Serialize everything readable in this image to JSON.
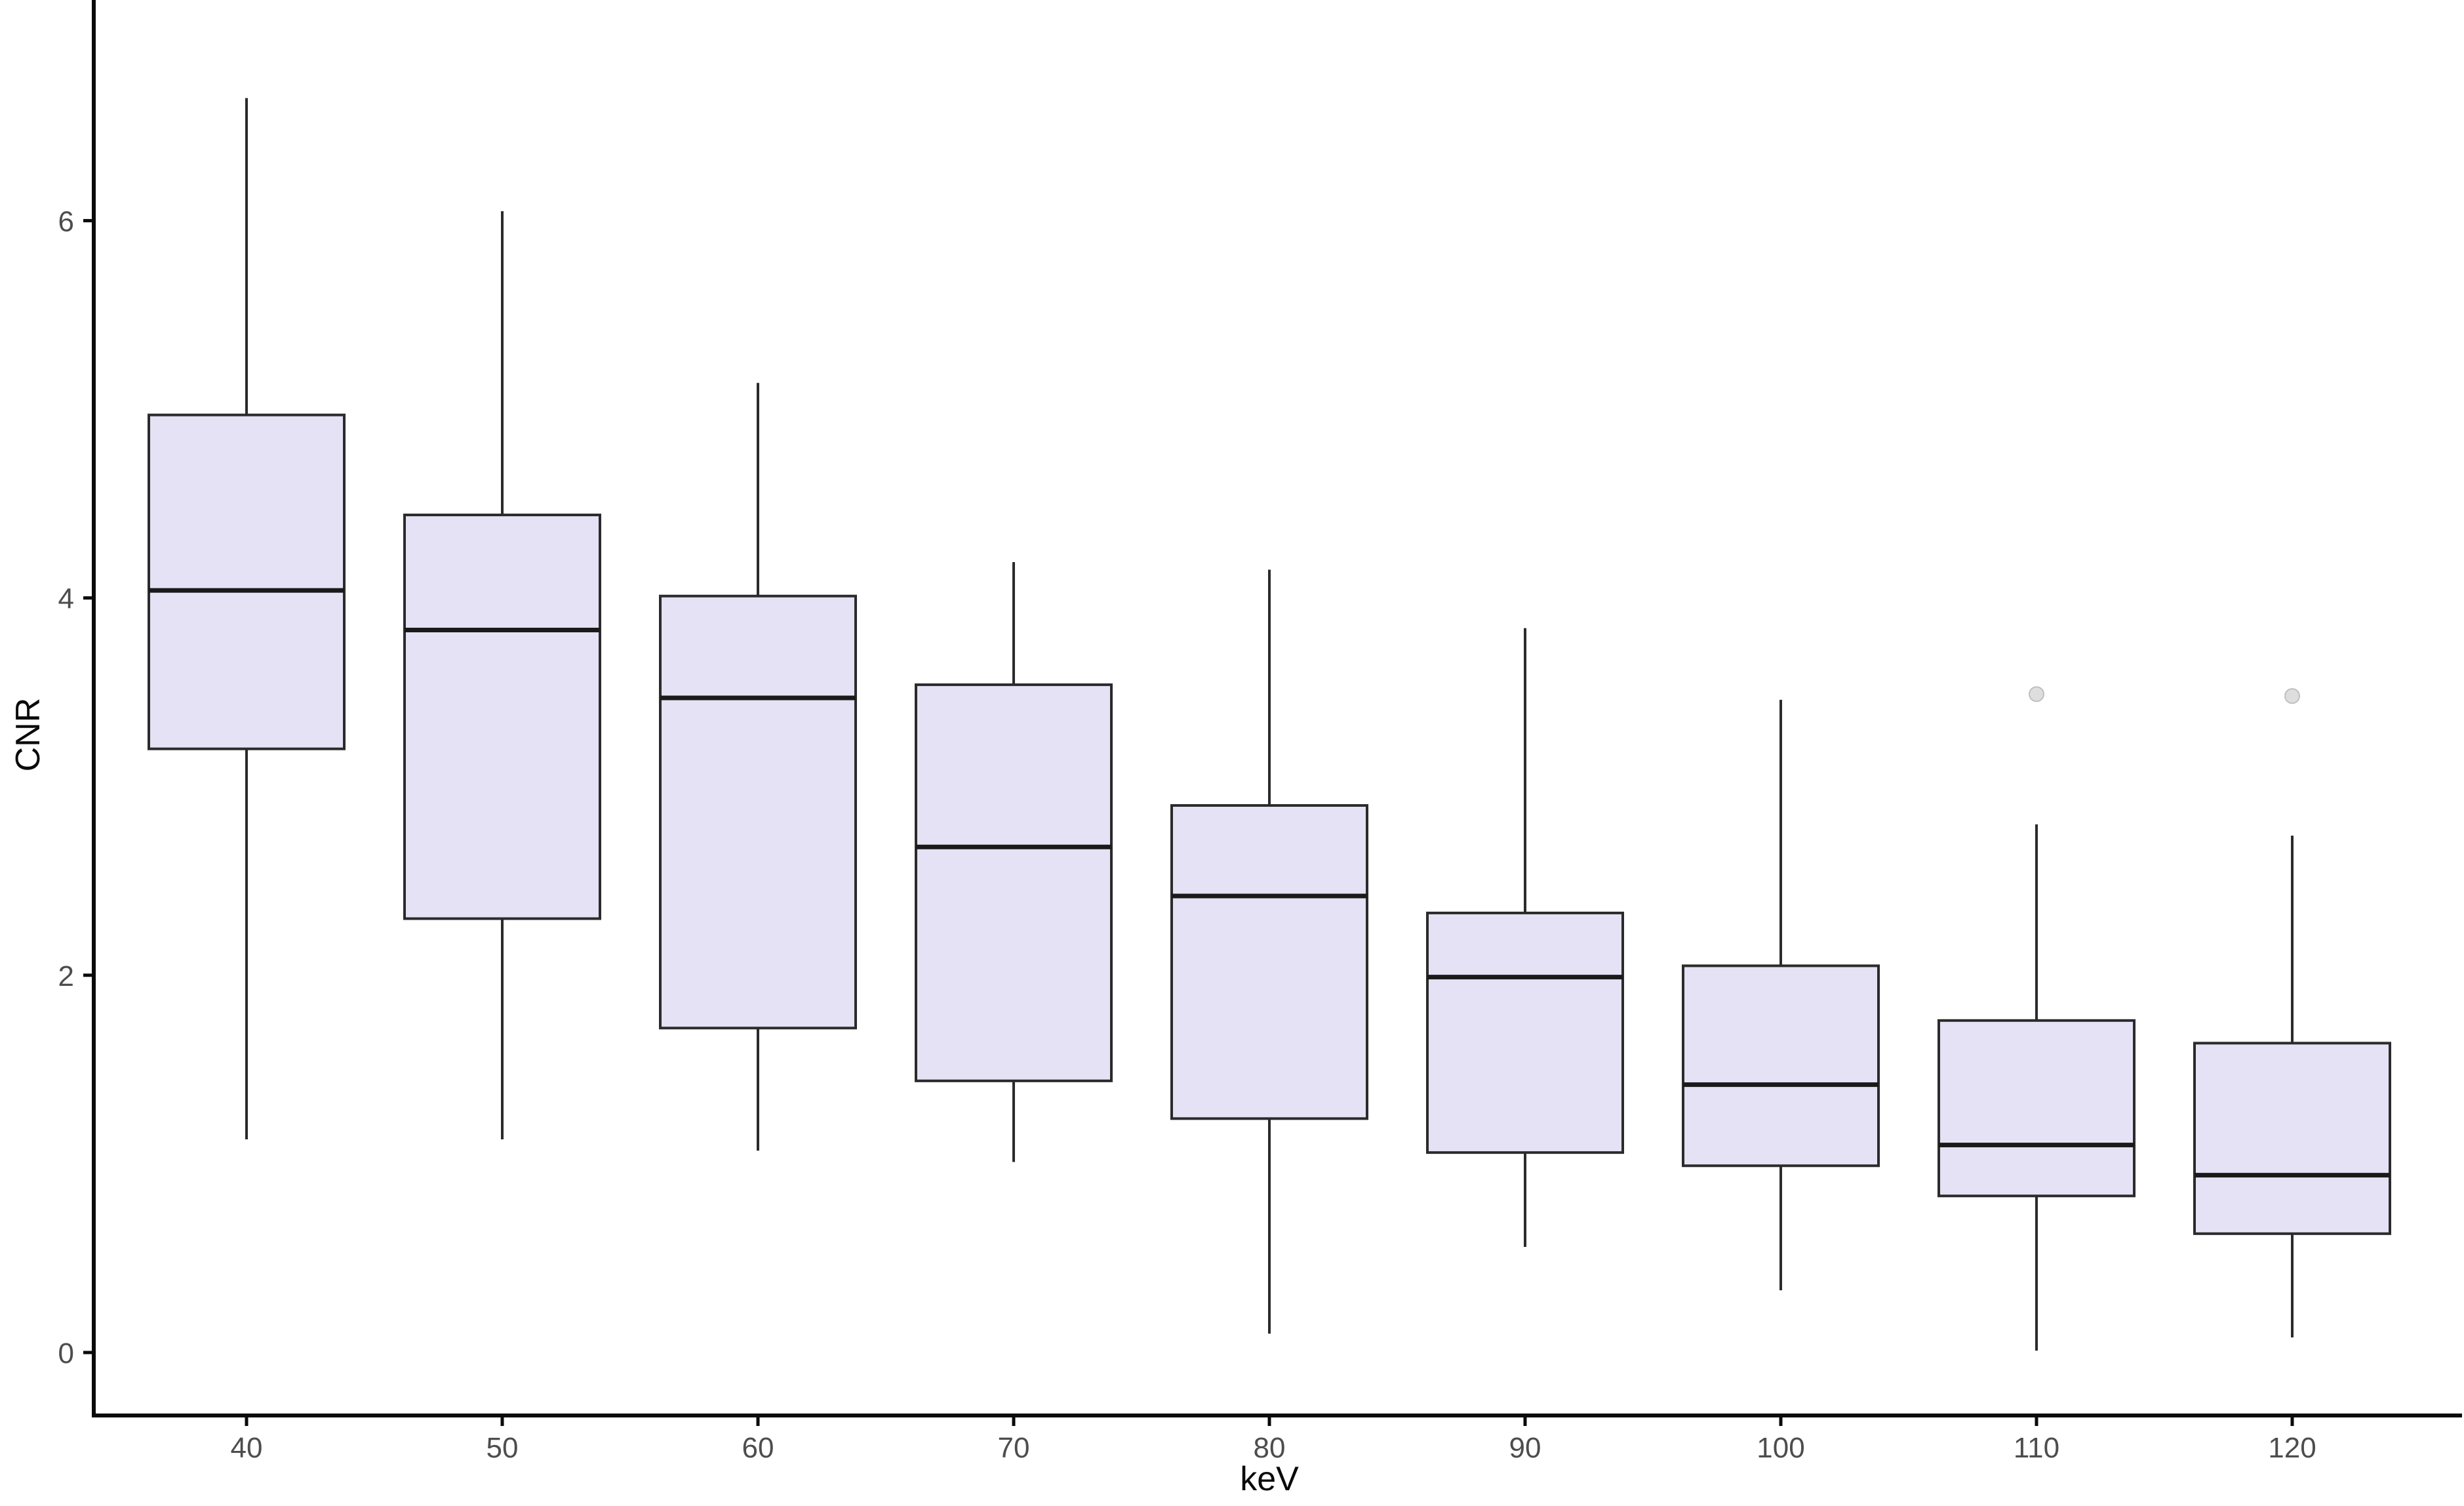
{
  "figure": {
    "background": "#ffffff",
    "box_fill": "#e4e2f4",
    "box_border": "#2b2b2b",
    "median_color": "#1a1a1a",
    "whisker_color": "#2b2b2b",
    "axis_line_color": "#0a0a0a",
    "tick_label_color": "#4d4d4d",
    "axis_title_color": "#0a0a0a",
    "outlier_fill": "#d3d3d3",
    "outlier_stroke": "#bfbfbf"
  },
  "chart_data": {
    "type": "boxplot",
    "title": "",
    "xlabel": "keV",
    "ylabel": "CNR",
    "categories": [
      "40",
      "50",
      "60",
      "70",
      "80",
      "90",
      "100",
      "110",
      "120"
    ],
    "y_ticks": [
      0,
      2,
      4,
      6
    ],
    "ylim": [
      -0.35,
      7.15
    ],
    "grid": false,
    "legend": "none",
    "boxes": [
      {
        "category": "40",
        "whisker_low": 1.13,
        "q1": 3.2,
        "median": 4.04,
        "q3": 4.97,
        "whisker_high": 6.65,
        "outliers": []
      },
      {
        "category": "50",
        "whisker_low": 1.13,
        "q1": 2.3,
        "median": 3.83,
        "q3": 4.44,
        "whisker_high": 6.05,
        "outliers": []
      },
      {
        "category": "60",
        "whisker_low": 1.07,
        "q1": 1.72,
        "median": 3.47,
        "q3": 4.01,
        "whisker_high": 5.14,
        "outliers": []
      },
      {
        "category": "70",
        "whisker_low": 1.01,
        "q1": 1.44,
        "median": 2.68,
        "q3": 3.54,
        "whisker_high": 4.19,
        "outliers": []
      },
      {
        "category": "80",
        "whisker_low": 0.1,
        "q1": 1.24,
        "median": 2.42,
        "q3": 2.9,
        "whisker_high": 4.15,
        "outliers": []
      },
      {
        "category": "90",
        "whisker_low": 0.56,
        "q1": 1.06,
        "median": 1.99,
        "q3": 2.33,
        "whisker_high": 3.84,
        "outliers": []
      },
      {
        "category": "100",
        "whisker_low": 0.33,
        "q1": 0.99,
        "median": 1.42,
        "q3": 2.05,
        "whisker_high": 3.46,
        "outliers": []
      },
      {
        "category": "110",
        "whisker_low": 0.01,
        "q1": 0.83,
        "median": 1.1,
        "q3": 1.76,
        "whisker_high": 2.8,
        "outliers": [
          3.49
        ]
      },
      {
        "category": "120",
        "whisker_low": 0.08,
        "q1": 0.63,
        "median": 0.94,
        "q3": 1.64,
        "whisker_high": 2.74,
        "outliers": [
          3.48
        ]
      }
    ]
  }
}
